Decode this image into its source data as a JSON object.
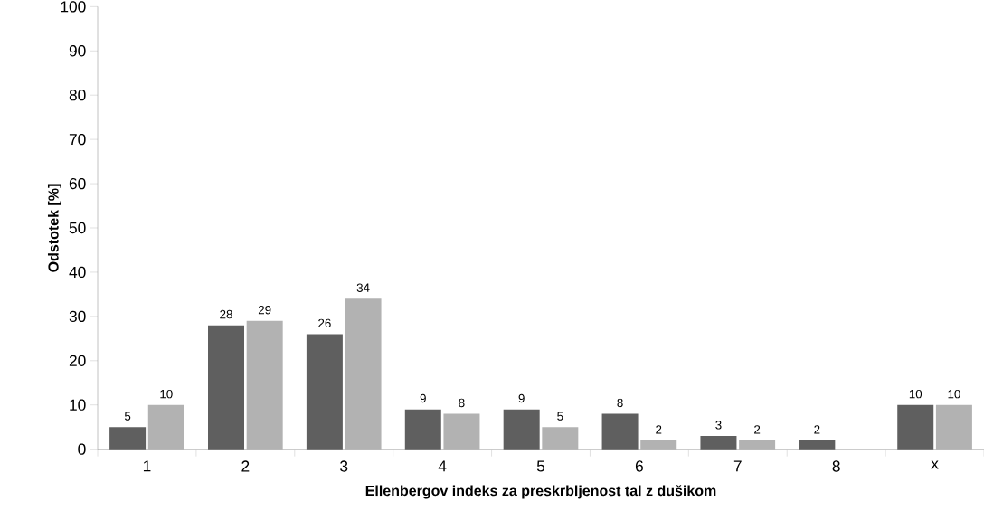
{
  "chart_data": {
    "type": "bar",
    "xlabel": "Ellenbergov indeks za preskrbljenost tal z dušikom",
    "ylabel": "Odstotek [%]",
    "categories": [
      "1",
      "2",
      "3",
      "4",
      "5",
      "6",
      "7",
      "8",
      "x"
    ],
    "series": [
      {
        "color": "#5f5f5f",
        "values": [
          5,
          28,
          26,
          9,
          9,
          8,
          3,
          2,
          10
        ]
      },
      {
        "color": "#b2b2b2",
        "values": [
          10,
          29,
          34,
          8,
          5,
          2,
          2,
          null,
          10
        ]
      }
    ],
    "ylim": [
      0,
      100
    ],
    "yticks": [
      0,
      10,
      20,
      30,
      40,
      50,
      60,
      70,
      80,
      90,
      100
    ],
    "data_labels": true
  }
}
